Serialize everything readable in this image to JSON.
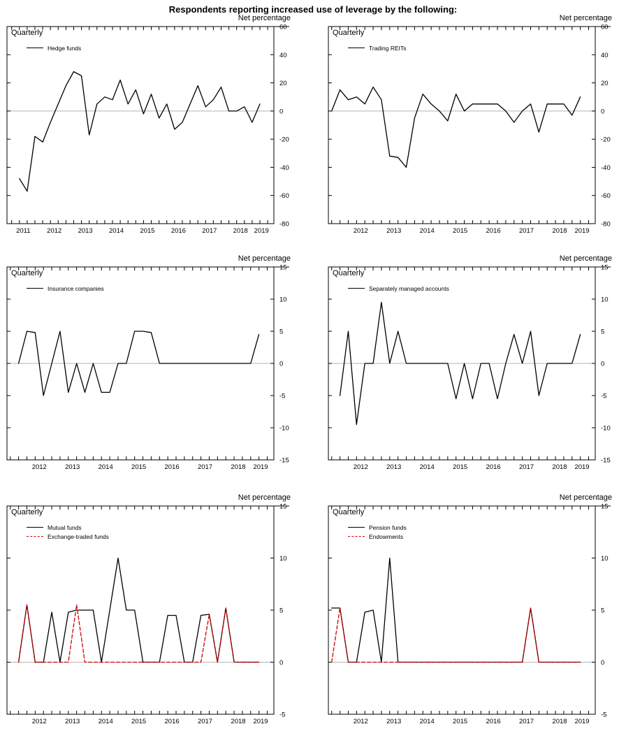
{
  "title": "Respondents reporting increased use of leverage by the following:",
  "colors": {
    "axis": "#000000",
    "zero_line": "#b3b3b3",
    "black_series": "#000000",
    "red_series": "#cc0000"
  },
  "chart_data": [
    {
      "type": "line",
      "freq_label": "Quarterly",
      "ylabel": "Net percentage",
      "ylim": [
        -80,
        60
      ],
      "yticks": [
        60,
        40,
        20,
        0,
        -20,
        -40,
        -60,
        -80
      ],
      "xlim": [
        2010.85,
        2019.45
      ],
      "years": [
        2011,
        2012,
        2013,
        2014,
        2015,
        2016,
        2017,
        2018,
        2019
      ],
      "grid": false,
      "series": [
        {
          "name": "Hedge funds",
          "color": "#000000",
          "dash": "solid",
          "x_start": 2011.25,
          "y": [
            -48,
            -57,
            -18,
            -22,
            -8,
            5,
            18,
            28,
            25,
            -17,
            5,
            10,
            8,
            22,
            5,
            15,
            -2,
            12,
            -5,
            5,
            -13,
            -8,
            5,
            18,
            3,
            8,
            17,
            0,
            0,
            3,
            -8,
            5
          ]
        }
      ]
    },
    {
      "type": "line",
      "freq_label": "Quarterly",
      "ylabel": "Net percentage",
      "ylim": [
        -80,
        60
      ],
      "yticks": [
        60,
        40,
        20,
        0,
        -20,
        -40,
        -60,
        -80
      ],
      "xlim": [
        2011.4,
        2019.45
      ],
      "years": [
        2012,
        2013,
        2014,
        2015,
        2016,
        2017,
        2018,
        2019
      ],
      "grid": false,
      "series": [
        {
          "name": "Trading REITs",
          "color": "#000000",
          "dash": "solid",
          "x_start": 2011.5,
          "y": [
            0,
            15,
            8,
            10,
            5,
            17,
            8,
            -32,
            -33,
            -40,
            -5,
            12,
            5,
            0,
            -7,
            12,
            0,
            5,
            5,
            5,
            5,
            0,
            -8,
            0,
            5,
            -15,
            5,
            5,
            5,
            -3,
            10
          ]
        }
      ]
    },
    {
      "type": "line",
      "freq_label": "Quarterly",
      "ylabel": "Net percentage",
      "ylim": [
        -15,
        15
      ],
      "yticks": [
        15,
        10,
        5,
        0,
        -5,
        -10,
        -15
      ],
      "xlim": [
        2011.4,
        2019.45
      ],
      "years": [
        2012,
        2013,
        2014,
        2015,
        2016,
        2017,
        2018,
        2019
      ],
      "grid": false,
      "series": [
        {
          "name": "Insurance companies",
          "color": "#000000",
          "dash": "solid",
          "x_start": 2011.75,
          "y": [
            0,
            5,
            4.8,
            -5,
            0,
            5,
            -4.5,
            0,
            -4.5,
            0,
            -4.5,
            -4.5,
            0,
            0,
            5,
            5,
            4.8,
            0,
            0,
            0,
            0,
            0,
            0,
            0,
            0,
            0,
            0,
            0,
            0,
            4.5
          ]
        }
      ]
    },
    {
      "type": "line",
      "freq_label": "Quarterly",
      "ylabel": "Net percentage",
      "ylim": [
        -15,
        15
      ],
      "yticks": [
        15,
        10,
        5,
        0,
        -5,
        -10,
        -15
      ],
      "xlim": [
        2011.4,
        2019.45
      ],
      "years": [
        2012,
        2013,
        2014,
        2015,
        2016,
        2017,
        2018,
        2019
      ],
      "grid": false,
      "series": [
        {
          "name": "Separately managed accounts",
          "color": "#000000",
          "dash": "solid",
          "x_start": 2011.75,
          "y": [
            -5,
            5,
            -9.5,
            0,
            0,
            9.5,
            0,
            5,
            0,
            0,
            0,
            0,
            0,
            0,
            -5.5,
            0,
            -5.5,
            0,
            0,
            -5.5,
            0,
            4.5,
            0,
            5,
            -5,
            0,
            0,
            0,
            0,
            4.5
          ]
        }
      ]
    },
    {
      "type": "line",
      "freq_label": "Quarterly",
      "ylabel": "Net percentage",
      "ylim": [
        -5,
        15
      ],
      "yticks": [
        15,
        10,
        5,
        0,
        -5
      ],
      "xlim": [
        2011.4,
        2019.45
      ],
      "years": [
        2012,
        2013,
        2014,
        2015,
        2016,
        2017,
        2018,
        2019
      ],
      "grid": false,
      "series": [
        {
          "name": "Mutual funds",
          "color": "#000000",
          "dash": "solid",
          "x_start": 2011.75,
          "y": [
            0,
            5.5,
            0,
            0,
            4.8,
            0,
            4.8,
            5,
            5,
            5,
            0,
            5,
            10,
            5,
            5,
            0,
            0,
            0,
            4.5,
            4.5,
            0,
            0,
            4.5,
            4.6,
            0,
            5.2,
            0,
            0,
            0,
            0
          ]
        },
        {
          "name": "Exchange-traded funds",
          "color": "#cc0000",
          "dash": "dashed",
          "x_start": 2011.75,
          "y": [
            0,
            5.5,
            0,
            0,
            0,
            0,
            0,
            5.5,
            0,
            0,
            0,
            0,
            0,
            0,
            0,
            0,
            0,
            0,
            0,
            0,
            0,
            0,
            0,
            4.6,
            0,
            5.2,
            0,
            0,
            0,
            0
          ]
        }
      ]
    },
    {
      "type": "line",
      "freq_label": "Quarterly",
      "ylabel": "Net percentage",
      "ylim": [
        -5,
        15
      ],
      "yticks": [
        15,
        10,
        5,
        0,
        -5
      ],
      "xlim": [
        2011.4,
        2019.45
      ],
      "years": [
        2012,
        2013,
        2014,
        2015,
        2016,
        2017,
        2018,
        2019
      ],
      "grid": false,
      "series": [
        {
          "name": "Pension funds",
          "color": "#000000",
          "dash": "solid",
          "x_start": 2011.5,
          "y": [
            5.2,
            5.2,
            0,
            0,
            4.8,
            5,
            0,
            10,
            0,
            0,
            0,
            0,
            0,
            0,
            0,
            0,
            0,
            0,
            0,
            0,
            0,
            0,
            0,
            0,
            5.2,
            0,
            0,
            0,
            0,
            0,
            0
          ]
        },
        {
          "name": "Endowments",
          "color": "#cc0000",
          "dash": "dashed",
          "x_start": 2011.5,
          "y": [
            0,
            5.2,
            0,
            0,
            0,
            0,
            0,
            0,
            0,
            0,
            0,
            0,
            0,
            0,
            0,
            0,
            0,
            0,
            0,
            0,
            0,
            0,
            0,
            0,
            5.2,
            0,
            0,
            0,
            0,
            0,
            0
          ]
        }
      ]
    }
  ]
}
